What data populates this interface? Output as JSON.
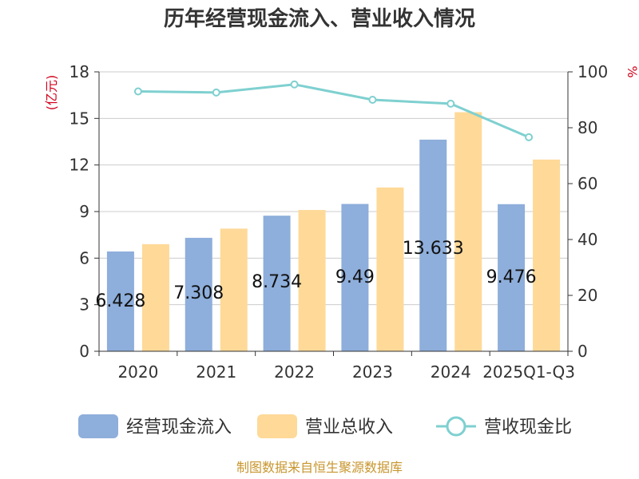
{
  "chart_data": {
    "type": "bar",
    "title": "历年经营现金流入、营业收入情况",
    "categories": [
      "2020",
      "2021",
      "2022",
      "2023",
      "2024",
      "2025Q1-Q3"
    ],
    "y_left": {
      "label": "(亿元)",
      "ylim": [
        0,
        18
      ],
      "ticks": [
        "0",
        "3",
        "6",
        "9",
        "12",
        "15",
        "18"
      ]
    },
    "y_right": {
      "label": "%",
      "ylim": [
        0,
        100
      ],
      "ticks": [
        "0",
        "20",
        "40",
        "60",
        "80",
        "100"
      ]
    },
    "series": [
      {
        "name": "经营现金流入",
        "type": "bar",
        "axis": "left",
        "color": "#8eaedb",
        "values": [
          6.428,
          7.308,
          8.734,
          9.49,
          13.633,
          9.476
        ],
        "labels": [
          "6.428",
          "7.308",
          "8.734",
          "9.49",
          "13.633",
          "9.476"
        ]
      },
      {
        "name": "营业总收入",
        "type": "bar",
        "axis": "left",
        "color": "#fed998",
        "values": [
          6.9,
          7.9,
          9.1,
          10.55,
          15.4,
          12.35
        ]
      },
      {
        "name": "营收现金比",
        "type": "line",
        "axis": "right",
        "color": "#7fd0d0",
        "values": [
          93,
          92.6,
          95.5,
          90,
          88.6,
          76.6
        ]
      }
    ],
    "grid": true,
    "legend_position": "bottom",
    "source": "制图数据来自恒生聚源数据库"
  }
}
